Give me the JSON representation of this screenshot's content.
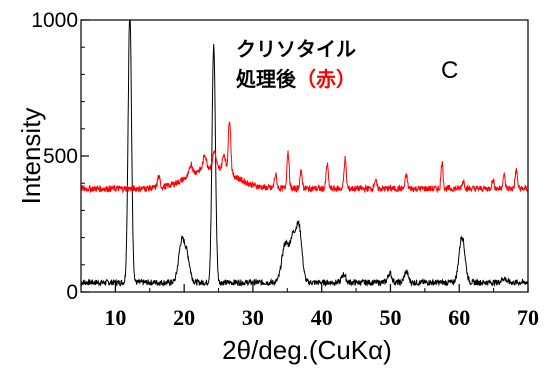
{
  "chart_data": {
    "type": "line",
    "title": "",
    "panel_label": "C",
    "xlabel": "2θ/deg.(CuKα)",
    "ylabel": "Intensity",
    "xlim": [
      5,
      70
    ],
    "ylim": [
      0,
      1000
    ],
    "x_ticks": [
      10,
      20,
      30,
      40,
      50,
      60,
      70
    ],
    "y_ticks": [
      0,
      500,
      1000
    ],
    "grid": false,
    "annotation": {
      "line1": "クリソタイル",
      "line2": "処理後",
      "line2_red": "（赤）"
    },
    "series": [
      {
        "color": "#000000",
        "baseline": 35,
        "peaks": [
          {
            "x": 12.1,
            "y": 1000,
            "w": 0.35
          },
          {
            "x": 19.6,
            "y": 140,
            "w": 0.6
          },
          {
            "x": 20.4,
            "y": 95,
            "w": 0.6
          },
          {
            "x": 24.3,
            "y": 870,
            "w": 0.35
          },
          {
            "x": 34.7,
            "y": 140,
            "w": 0.7
          },
          {
            "x": 35.8,
            "y": 150,
            "w": 0.6
          },
          {
            "x": 36.7,
            "y": 200,
            "w": 0.6
          },
          {
            "x": 43.2,
            "y": 30,
            "w": 0.4
          },
          {
            "x": 49.9,
            "y": 35,
            "w": 0.4
          },
          {
            "x": 52.3,
            "y": 40,
            "w": 0.4
          },
          {
            "x": 60.4,
            "y": 170,
            "w": 0.6
          },
          {
            "x": 66.5,
            "y": 15,
            "w": 0.5
          }
        ]
      },
      {
        "color": "#ff0000",
        "baseline": 380,
        "peaks": [
          {
            "x": 16.3,
            "y": 40,
            "w": 0.25
          },
          {
            "x": 21.0,
            "y": 40,
            "w": 0.3
          },
          {
            "x": 23.0,
            "y": 50,
            "w": 0.3
          },
          {
            "x": 24.4,
            "y": 60,
            "w": 0.3
          },
          {
            "x": 25.8,
            "y": 60,
            "w": 0.3
          },
          {
            "x": 26.6,
            "y": 200,
            "w": 0.25
          },
          {
            "x": 33.3,
            "y": 50,
            "w": 0.25
          },
          {
            "x": 35.1,
            "y": 140,
            "w": 0.22
          },
          {
            "x": 37.0,
            "y": 60,
            "w": 0.25
          },
          {
            "x": 40.8,
            "y": 90,
            "w": 0.22
          },
          {
            "x": 43.4,
            "y": 110,
            "w": 0.22
          },
          {
            "x": 47.8,
            "y": 30,
            "w": 0.25
          },
          {
            "x": 52.3,
            "y": 50,
            "w": 0.22
          },
          {
            "x": 57.5,
            "y": 100,
            "w": 0.2
          },
          {
            "x": 60.6,
            "y": 30,
            "w": 0.25
          },
          {
            "x": 64.9,
            "y": 30,
            "w": 0.25
          },
          {
            "x": 66.5,
            "y": 50,
            "w": 0.22
          },
          {
            "x": 68.3,
            "y": 70,
            "w": 0.22
          }
        ],
        "hump": {
          "center": 24.0,
          "height": 80,
          "width": 4.5
        }
      }
    ]
  }
}
